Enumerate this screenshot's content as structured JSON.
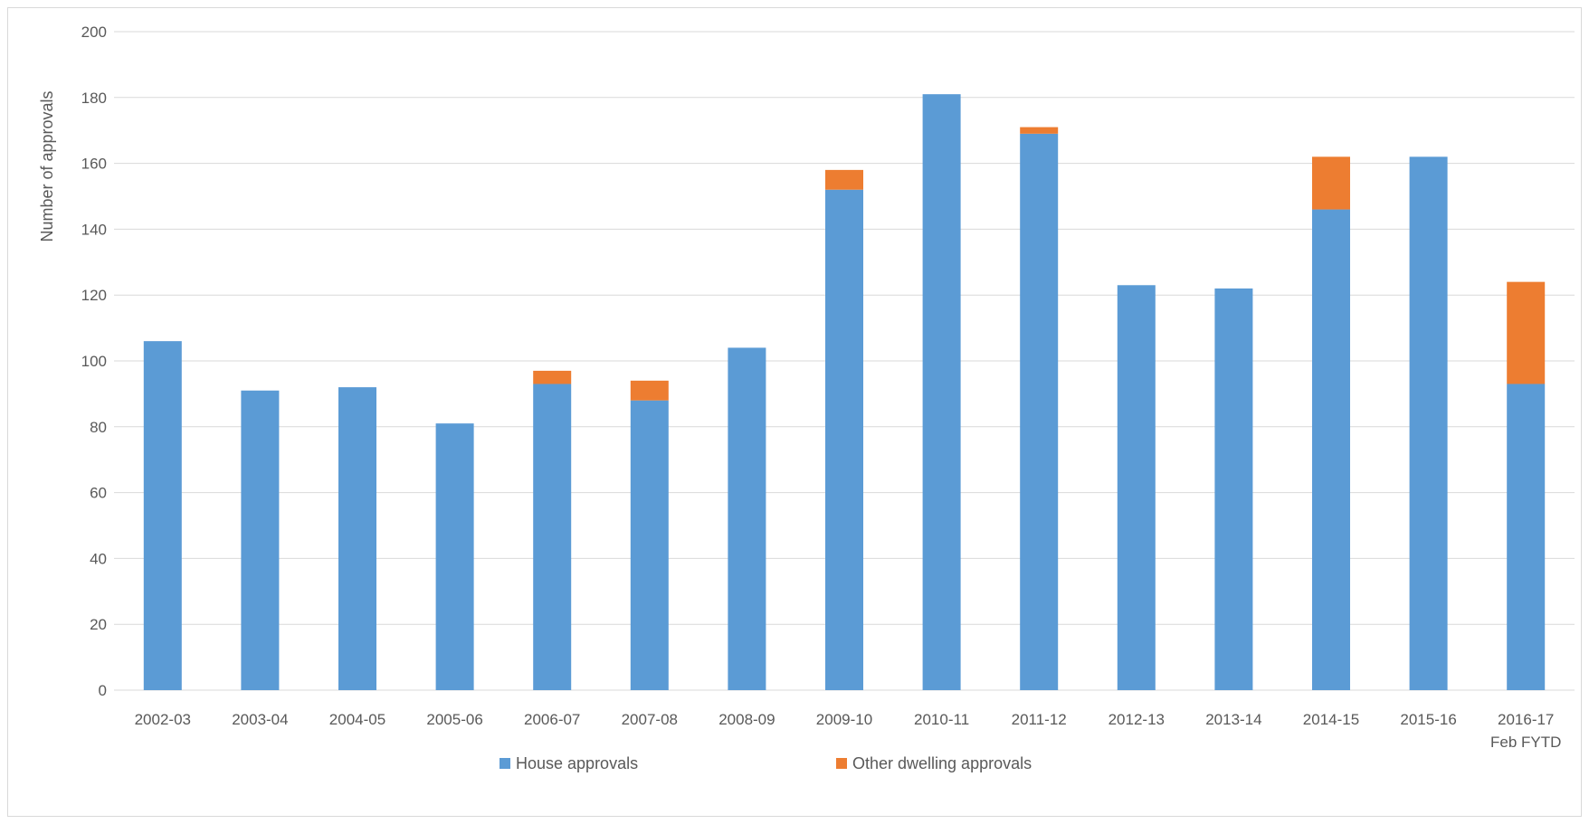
{
  "chart_data": {
    "type": "bar",
    "stacked": true,
    "categories": [
      [
        "2002-03"
      ],
      [
        "2003-04"
      ],
      [
        "2004-05"
      ],
      [
        "2005-06"
      ],
      [
        "2006-07"
      ],
      [
        "2007-08"
      ],
      [
        "2008-09"
      ],
      [
        "2009-10"
      ],
      [
        "2010-11"
      ],
      [
        "2011-12"
      ],
      [
        "2012-13"
      ],
      [
        "2013-14"
      ],
      [
        "2014-15"
      ],
      [
        "2015-16"
      ],
      [
        "2016-17",
        "Feb FYTD"
      ]
    ],
    "series": [
      {
        "name": "House approvals",
        "color": "#5b9bd5",
        "values": [
          106,
          91,
          92,
          81,
          93,
          88,
          104,
          152,
          181,
          169,
          123,
          122,
          146,
          162,
          93
        ]
      },
      {
        "name": "Other dwelling approvals",
        "color": "#ed7d31",
        "values": [
          0,
          0,
          0,
          0,
          4,
          6,
          0,
          6,
          0,
          2,
          0,
          0,
          16,
          0,
          31
        ]
      }
    ],
    "ylabel": "Number of approvals",
    "xlabel": "",
    "title": "",
    "ylim": [
      0,
      200
    ],
    "yticks": [
      0,
      20,
      40,
      60,
      80,
      100,
      120,
      140,
      160,
      180,
      200
    ],
    "grid": true,
    "legend_position": "bottom"
  }
}
